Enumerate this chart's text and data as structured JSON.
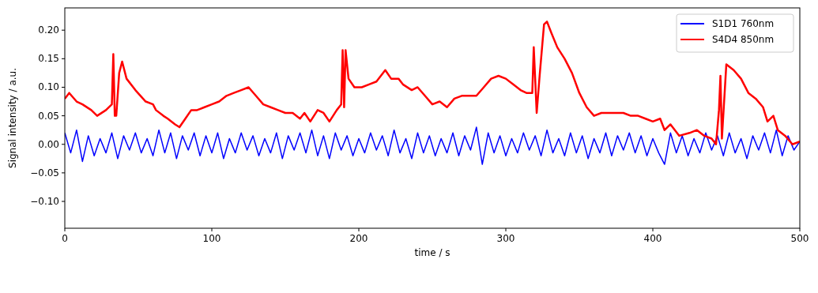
{
  "chart_data": {
    "type": "line",
    "xlabel": "time / s",
    "ylabel": "Signal intensity / a.u.",
    "xlim": [
      0,
      500
    ],
    "ylim": [
      -0.147,
      0.239
    ],
    "xticks": [
      0,
      100,
      200,
      300,
      400,
      500
    ],
    "yticks": [
      {
        "value": -0.1,
        "label": "−0.10"
      },
      {
        "value": -0.05,
        "label": "−0.05"
      },
      {
        "value": 0,
        "label": "0.00"
      },
      {
        "value": 0.05,
        "label": "0.05"
      },
      {
        "value": 0.1,
        "label": "0.10"
      },
      {
        "value": 0.15,
        "label": "0.15"
      },
      {
        "value": 0.2,
        "label": "0.20"
      }
    ],
    "legend": "top right",
    "grid": false,
    "line_style": "solid",
    "marker": "none",
    "series": [
      {
        "name": "S1D1 760nm",
        "color": "#0000ff",
        "x": [
          0,
          4,
          8,
          12,
          16,
          20,
          24,
          28,
          32,
          36,
          40,
          44,
          48,
          52,
          56,
          60,
          64,
          68,
          72,
          76,
          80,
          84,
          88,
          92,
          96,
          100,
          104,
          108,
          112,
          116,
          120,
          124,
          128,
          132,
          136,
          140,
          144,
          148,
          152,
          156,
          160,
          164,
          168,
          172,
          176,
          180,
          184,
          188,
          192,
          196,
          200,
          204,
          208,
          212,
          216,
          220,
          224,
          228,
          232,
          236,
          240,
          244,
          248,
          252,
          256,
          260,
          264,
          268,
          272,
          276,
          280,
          284,
          288,
          292,
          296,
          300,
          304,
          308,
          312,
          316,
          320,
          324,
          328,
          332,
          336,
          340,
          344,
          348,
          352,
          356,
          360,
          364,
          368,
          372,
          376,
          380,
          384,
          388,
          392,
          396,
          400,
          404,
          408,
          412,
          416,
          420,
          424,
          428,
          432,
          436,
          440,
          444,
          448,
          452,
          456,
          460,
          464,
          468,
          472,
          476,
          480,
          484,
          488,
          492,
          496,
          500
        ],
        "values": [
          0.02,
          -0.015,
          0.025,
          -0.03,
          0.015,
          -0.02,
          0.01,
          -0.015,
          0.02,
          -0.025,
          0.015,
          -0.01,
          0.02,
          -0.015,
          0.01,
          -0.02,
          0.025,
          -0.015,
          0.02,
          -0.025,
          0.015,
          -0.01,
          0.02,
          -0.02,
          0.015,
          -0.015,
          0.02,
          -0.025,
          0.01,
          -0.015,
          0.02,
          -0.01,
          0.015,
          -0.02,
          0.01,
          -0.015,
          0.02,
          -0.025,
          0.015,
          -0.01,
          0.02,
          -0.015,
          0.025,
          -0.02,
          0.015,
          -0.025,
          0.02,
          -0.01,
          0.015,
          -0.02,
          0.01,
          -0.015,
          0.02,
          -0.01,
          0.015,
          -0.02,
          0.025,
          -0.015,
          0.01,
          -0.025,
          0.02,
          -0.015,
          0.015,
          -0.02,
          0.01,
          -0.015,
          0.02,
          -0.02,
          0.015,
          -0.01,
          0.03,
          -0.035,
          0.02,
          -0.015,
          0.015,
          -0.02,
          0.01,
          -0.015,
          0.02,
          -0.01,
          0.015,
          -0.02,
          0.025,
          -0.015,
          0.01,
          -0.02,
          0.02,
          -0.015,
          0.015,
          -0.025,
          0.01,
          -0.015,
          0.02,
          -0.02,
          0.015,
          -0.01,
          0.02,
          -0.015,
          0.015,
          -0.02,
          0.01,
          -0.015,
          -0.035,
          0.02,
          -0.015,
          0.015,
          -0.02,
          0.01,
          -0.015,
          0.02,
          -0.01,
          0.015,
          -0.02,
          0.02,
          -0.015,
          0.01,
          -0.025,
          0.015,
          -0.01,
          0.02,
          -0.015,
          0.025,
          -0.02,
          0.015,
          -0.01,
          0.005
        ]
      },
      {
        "name": "S4D4 850nm",
        "color": "#ff0000",
        "x": [
          0,
          3,
          8,
          12,
          18,
          22,
          28,
          32,
          33,
          34,
          35,
          37,
          39,
          42,
          48,
          55,
          60,
          62,
          67,
          70,
          75,
          78,
          82,
          86,
          90,
          95,
          100,
          105,
          110,
          115,
          120,
          125,
          130,
          135,
          140,
          145,
          150,
          155,
          160,
          163,
          167,
          172,
          176,
          180,
          185,
          188,
          189,
          190,
          191,
          193,
          197,
          202,
          207,
          212,
          218,
          222,
          227,
          230,
          236,
          240,
          245,
          250,
          255,
          260,
          265,
          270,
          275,
          280,
          285,
          290,
          295,
          300,
          305,
          310,
          314,
          318,
          319,
          321,
          323,
          326,
          328,
          331,
          335,
          340,
          345,
          350,
          355,
          360,
          365,
          370,
          380,
          385,
          390,
          395,
          400,
          405,
          408,
          412,
          418,
          425,
          430,
          435,
          440,
          443,
          445,
          446,
          447,
          450,
          455,
          460,
          465,
          470,
          475,
          478,
          482,
          485,
          490,
          495,
          500
        ],
        "values": [
          0.08,
          0.09,
          0.075,
          0.07,
          0.06,
          0.05,
          0.06,
          0.07,
          0.158,
          0.05,
          0.05,
          0.125,
          0.145,
          0.115,
          0.095,
          0.075,
          0.07,
          0.06,
          0.05,
          0.045,
          0.035,
          0.03,
          0.045,
          0.06,
          0.06,
          0.065,
          0.07,
          0.075,
          0.085,
          0.09,
          0.095,
          0.1,
          0.085,
          0.07,
          0.065,
          0.06,
          0.055,
          0.055,
          0.045,
          0.055,
          0.04,
          0.06,
          0.055,
          0.04,
          0.06,
          0.07,
          0.165,
          0.065,
          0.165,
          0.115,
          0.1,
          0.1,
          0.105,
          0.11,
          0.13,
          0.115,
          0.115,
          0.105,
          0.095,
          0.1,
          0.085,
          0.07,
          0.075,
          0.065,
          0.08,
          0.085,
          0.085,
          0.085,
          0.1,
          0.115,
          0.12,
          0.115,
          0.105,
          0.095,
          0.09,
          0.09,
          0.17,
          0.055,
          0.12,
          0.21,
          0.215,
          0.195,
          0.17,
          0.15,
          0.125,
          0.09,
          0.065,
          0.05,
          0.055,
          0.055,
          0.055,
          0.05,
          0.05,
          0.045,
          0.04,
          0.045,
          0.025,
          0.035,
          0.015,
          0.02,
          0.025,
          0.015,
          0.01,
          0,
          0.06,
          0.12,
          0.01,
          0.14,
          0.13,
          0.115,
          0.09,
          0.08,
          0.065,
          0.04,
          0.05,
          0.025,
          0.015,
          0,
          0.005
        ]
      }
    ]
  }
}
